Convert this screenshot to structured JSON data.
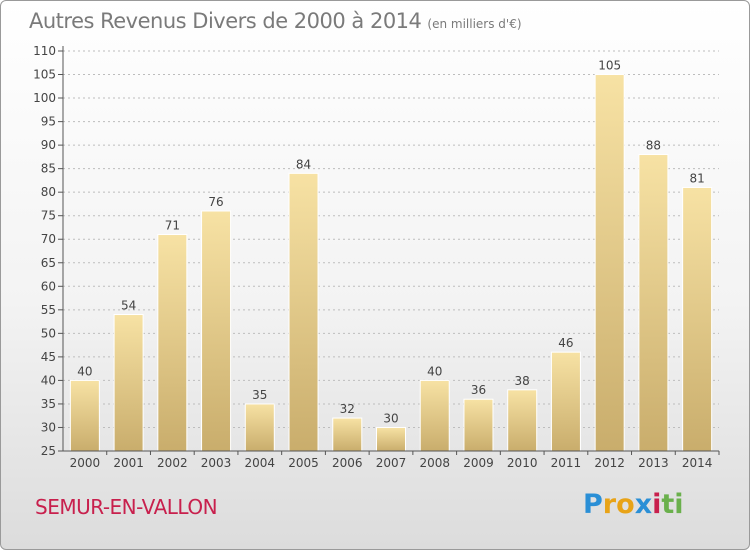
{
  "title": "Autres Revenus Divers de 2000 à 2014",
  "title_unit": "(en milliers d'€)",
  "commune": "SEMUR-EN-VALLON",
  "logo": {
    "letters": [
      "P",
      "r",
      "o",
      "x",
      "i",
      "t",
      "i"
    ],
    "colors": [
      "#2a8fd6",
      "#e8a317",
      "#e8a317",
      "#2a8fd6",
      "#c8204d",
      "#6ab04c",
      "#6ab04c"
    ]
  },
  "colors": {
    "bar_light": "#f7e2a4",
    "bar_dark": "#c9ad6c",
    "axis": "#555555",
    "grid": "#bdbdbd",
    "text": "#444444",
    "title": "#7a7a7a",
    "commune": "#c8204d"
  },
  "chart_data": {
    "type": "bar",
    "title": "Autres Revenus Divers de 2000 à 2014",
    "subtitle": "(en milliers d'€)",
    "xlabel": "",
    "ylabel": "",
    "categories": [
      "2000",
      "2001",
      "2002",
      "2003",
      "2004",
      "2005",
      "2006",
      "2007",
      "2008",
      "2009",
      "2010",
      "2011",
      "2012",
      "2013",
      "2014"
    ],
    "values": [
      40,
      54,
      71,
      76,
      35,
      84,
      32,
      30,
      40,
      36,
      38,
      46,
      105,
      88,
      81
    ],
    "ylim": [
      25,
      110
    ],
    "yticks": [
      25,
      30,
      35,
      40,
      45,
      50,
      55,
      60,
      65,
      70,
      75,
      80,
      85,
      90,
      95,
      100,
      105,
      110
    ],
    "grid": true,
    "legend": "none"
  }
}
